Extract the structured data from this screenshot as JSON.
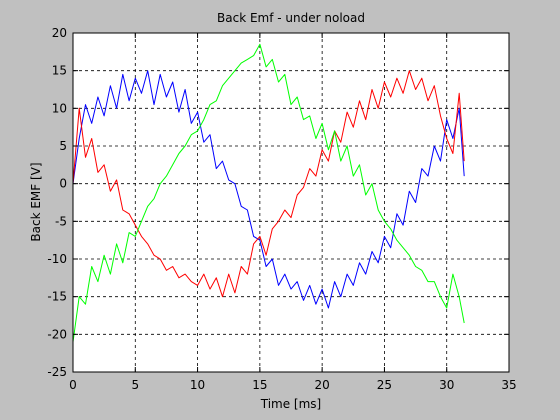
{
  "chart_data": {
    "type": "line",
    "title": "Back Emf - under noload",
    "xlabel": "Time [ms]",
    "ylabel": "Back EMF [V]",
    "xlim": [
      0,
      35
    ],
    "ylim": [
      -25,
      20
    ],
    "xticks": [
      0,
      5,
      10,
      15,
      20,
      25,
      30,
      35
    ],
    "yticks": [
      -25,
      -20,
      -15,
      -10,
      -5,
      0,
      5,
      10,
      15,
      20
    ],
    "grid": true,
    "grid_style": "dashed",
    "series": [
      {
        "color": "#0000ff",
        "x": [
          0.0,
          0.5,
          1.0,
          1.5,
          2.0,
          2.5,
          3.0,
          3.5,
          4.0,
          4.5,
          5.0,
          5.5,
          6.0,
          6.5,
          7.0,
          7.5,
          8.0,
          8.5,
          9.0,
          9.5,
          10.0,
          10.5,
          11.0,
          11.5,
          12.0,
          12.5,
          13.0,
          13.5,
          14.0,
          14.5,
          15.0,
          15.5,
          16.0,
          16.5,
          17.0,
          17.5,
          18.0,
          18.5,
          19.0,
          19.5,
          20.0,
          20.5,
          21.0,
          21.5,
          22.0,
          22.5,
          23.0,
          23.5,
          24.0,
          24.5,
          25.0,
          25.5,
          26.0,
          26.5,
          27.0,
          27.5,
          28.0,
          28.5,
          29.0,
          29.5,
          30.0,
          30.5,
          31.0,
          31.4
        ],
        "y": [
          0.0,
          6.0,
          10.5,
          8.0,
          11.5,
          9.0,
          13.0,
          10.0,
          14.5,
          11.0,
          14.0,
          12.0,
          15.0,
          10.5,
          14.5,
          11.5,
          13.5,
          9.5,
          12.5,
          8.0,
          9.5,
          5.5,
          6.5,
          2.0,
          3.0,
          0.5,
          0.0,
          -3.0,
          -3.5,
          -7.0,
          -7.5,
          -11.0,
          -10.0,
          -13.5,
          -12.0,
          -14.0,
          -13.0,
          -15.5,
          -13.5,
          -16.0,
          -14.0,
          -16.5,
          -13.0,
          -15.0,
          -12.0,
          -13.5,
          -10.5,
          -12.0,
          -9.0,
          -10.5,
          -7.0,
          -8.5,
          -4.0,
          -5.5,
          -1.0,
          -2.5,
          2.0,
          1.0,
          5.0,
          3.0,
          8.5,
          6.0,
          10.0,
          1.0
        ]
      },
      {
        "color": "#ff0000",
        "x": [
          0.0,
          0.5,
          1.0,
          1.5,
          2.0,
          2.5,
          3.0,
          3.5,
          4.0,
          4.5,
          5.0,
          5.5,
          6.0,
          6.5,
          7.0,
          7.5,
          8.0,
          8.5,
          9.0,
          9.5,
          10.0,
          10.5,
          11.0,
          11.5,
          12.0,
          12.5,
          13.0,
          13.5,
          14.0,
          14.5,
          15.0,
          15.5,
          16.0,
          16.5,
          17.0,
          17.5,
          18.0,
          18.5,
          19.0,
          19.5,
          20.0,
          20.5,
          21.0,
          21.5,
          22.0,
          22.5,
          23.0,
          23.5,
          24.0,
          24.5,
          25.0,
          25.5,
          26.0,
          26.5,
          27.0,
          27.5,
          28.0,
          28.5,
          29.0,
          29.5,
          30.0,
          30.5,
          31.0,
          31.4
        ],
        "y": [
          0.0,
          10.0,
          3.5,
          6.0,
          1.5,
          2.5,
          -1.0,
          0.5,
          -3.5,
          -4.0,
          -5.5,
          -7.0,
          -8.0,
          -9.5,
          -10.0,
          -11.5,
          -11.0,
          -12.5,
          -12.0,
          -13.0,
          -13.5,
          -12.0,
          -14.0,
          -12.5,
          -15.0,
          -12.0,
          -14.5,
          -11.0,
          -12.0,
          -8.0,
          -7.0,
          -9.5,
          -6.0,
          -5.0,
          -3.5,
          -4.5,
          -1.5,
          -0.5,
          2.0,
          1.0,
          4.5,
          3.0,
          7.0,
          5.5,
          9.5,
          7.5,
          11.0,
          8.5,
          12.5,
          10.0,
          13.5,
          11.5,
          14.0,
          12.0,
          15.0,
          12.5,
          14.0,
          11.0,
          13.0,
          9.0,
          6.0,
          4.0,
          12.0,
          3.0
        ]
      },
      {
        "color": "#00ff00",
        "x": [
          0.0,
          0.5,
          1.0,
          1.5,
          2.0,
          2.5,
          3.0,
          3.5,
          4.0,
          4.5,
          5.0,
          5.5,
          6.0,
          6.5,
          7.0,
          7.5,
          8.0,
          8.5,
          9.0,
          9.5,
          10.0,
          10.5,
          11.0,
          11.5,
          12.0,
          12.5,
          13.0,
          13.5,
          14.0,
          14.5,
          15.0,
          15.5,
          16.0,
          16.5,
          17.0,
          17.5,
          18.0,
          18.5,
          19.0,
          19.5,
          20.0,
          20.5,
          21.0,
          21.5,
          22.0,
          22.5,
          23.0,
          23.5,
          24.0,
          24.5,
          25.0,
          25.5,
          26.0,
          26.5,
          27.0,
          27.5,
          28.0,
          28.5,
          29.0,
          29.5,
          30.0,
          30.5,
          31.0,
          31.4
        ],
        "y": [
          -21.0,
          -15.0,
          -16.0,
          -11.0,
          -13.0,
          -9.5,
          -12.0,
          -8.0,
          -10.5,
          -6.5,
          -7.0,
          -5.0,
          -3.0,
          -2.0,
          0.0,
          1.0,
          2.5,
          4.0,
          5.0,
          6.5,
          7.0,
          8.5,
          10.5,
          11.0,
          13.0,
          14.0,
          15.0,
          16.0,
          16.5,
          17.0,
          18.5,
          15.5,
          16.5,
          13.5,
          14.5,
          10.5,
          11.5,
          8.5,
          9.0,
          6.0,
          8.0,
          4.5,
          7.0,
          3.0,
          5.0,
          1.0,
          2.5,
          -1.5,
          0.0,
          -3.5,
          -5.0,
          -6.0,
          -7.5,
          -8.5,
          -9.5,
          -11.0,
          -11.5,
          -13.0,
          -13.0,
          -15.0,
          -16.5,
          -12.0,
          -15.0,
          -18.5
        ]
      }
    ]
  }
}
